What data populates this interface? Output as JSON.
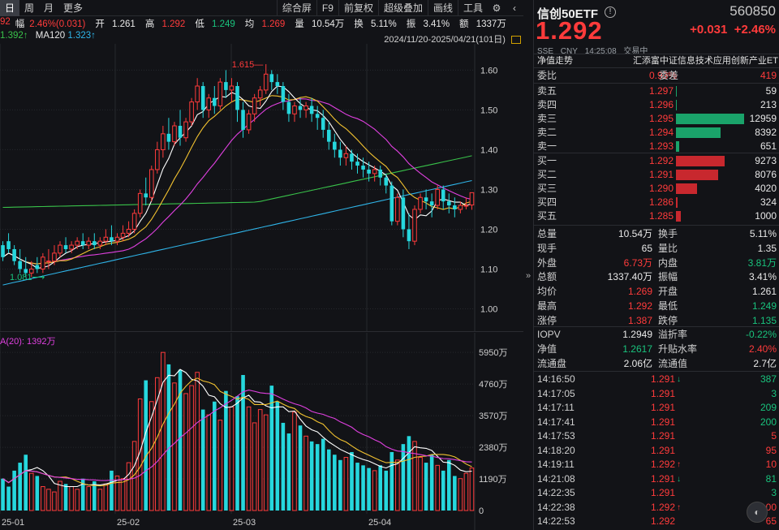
{
  "toolbar": {
    "period_day": "日",
    "period_week": "周",
    "period_month": "月",
    "more": "更多",
    "composite": "综合屏",
    "f9": "F9",
    "forward_adj": "前复权",
    "overlay": "超级叠加",
    "draw": "画线",
    "tools": "工具"
  },
  "info_line": {
    "prefix": "92",
    "change_label": "幅",
    "change_value": "2.46%(0.031)",
    "open_label": "开",
    "open_value": "1.261",
    "high_label": "高",
    "high_value": "1.292",
    "low_label": "低",
    "low_value": "1.249",
    "avg_label": "均",
    "avg_value": "1.269",
    "vol_label": "量",
    "vol_value": "10.54万",
    "turnover_label": "换",
    "turnover_value": "5.11%",
    "amp_label": "振",
    "amp_value": "3.41%",
    "amount_label": "额",
    "amount_value": "1337万"
  },
  "ma_line": {
    "ma_short": "1.392↑",
    "ma120_label": "MA120",
    "ma120_value": "1.323↑"
  },
  "range_text": "2024/11/20-2025/04/21(101日)",
  "kline": {
    "price_ticks": [
      "1.60",
      "1.50",
      "1.40",
      "1.30",
      "1.20",
      "1.10",
      "1.00"
    ],
    "high_label": "1.615",
    "low_label": "1.081"
  },
  "volume": {
    "label": "A(20): 1392万",
    "ticks": [
      "5950万",
      "4760万",
      "3570万",
      "2380万",
      "1190万",
      "0"
    ]
  },
  "date_ticks": [
    "25-01",
    "25-02",
    "25-03",
    "25-04"
  ],
  "colors": {
    "up": "#ff3b3b",
    "down": "#26d7dd",
    "ma5": "#ffffff",
    "ma10": "#f2c230",
    "ma20": "#e040e0",
    "ma60": "#39c24a",
    "ma120": "#2fb4e8"
  },
  "quote": {
    "name": "信创50ETF",
    "code": "560850",
    "price": "1.292",
    "change": "+0.031",
    "change_pct": "+2.46%",
    "exchange": "SSE",
    "currency": "CNY",
    "time": "14:25:08",
    "status": "交易中",
    "nav_tab": "净值走势",
    "index_name": "汇添富中证信息技术应用创新产业ET"
  },
  "order_ratio": {
    "label1": "委比",
    "value1": "0.93%",
    "label2": "委差",
    "value2": "419"
  },
  "asks": [
    {
      "label": "卖五",
      "price": "1.297",
      "volume": "59",
      "bar_pct": 0.5
    },
    {
      "label": "卖四",
      "price": "1.296",
      "volume": "213",
      "bar_pct": 1.6
    },
    {
      "label": "卖三",
      "price": "1.295",
      "volume": "12959",
      "bar_pct": 100
    },
    {
      "label": "卖二",
      "price": "1.294",
      "volume": "8392",
      "bar_pct": 65
    },
    {
      "label": "卖一",
      "price": "1.293",
      "volume": "651",
      "bar_pct": 5
    }
  ],
  "bids": [
    {
      "label": "买一",
      "price": "1.292",
      "volume": "9273",
      "bar_pct": 72
    },
    {
      "label": "买二",
      "price": "1.291",
      "volume": "8076",
      "bar_pct": 62
    },
    {
      "label": "买三",
      "price": "1.290",
      "volume": "4020",
      "bar_pct": 31
    },
    {
      "label": "买四",
      "price": "1.286",
      "volume": "324",
      "bar_pct": 2.5
    },
    {
      "label": "买五",
      "price": "1.285",
      "volume": "1000",
      "bar_pct": 7.7
    }
  ],
  "stats": [
    {
      "k1": "总量",
      "v1": "10.54万",
      "c1": "white",
      "k2": "换手",
      "v2": "5.11%",
      "c2": "white"
    },
    {
      "k1": "现手",
      "v1": "65",
      "c1": "white",
      "k2": "量比",
      "v2": "1.35",
      "c2": "white"
    },
    {
      "k1": "外盘",
      "v1": "6.73万",
      "c1": "red",
      "k2": "内盘",
      "v2": "3.81万",
      "c2": "green"
    },
    {
      "k1": "总额",
      "v1": "1337.40万",
      "c1": "white",
      "k2": "振幅",
      "v2": "3.41%",
      "c2": "white"
    },
    {
      "k1": "均价",
      "v1": "1.269",
      "c1": "red",
      "k2": "开盘",
      "v2": "1.261",
      "c2": "white"
    },
    {
      "k1": "最高",
      "v1": "1.292",
      "c1": "red",
      "k2": "最低",
      "v2": "1.249",
      "c2": "green"
    },
    {
      "k1": "涨停",
      "v1": "1.387",
      "c1": "red",
      "k2": "跌停",
      "v2": "1.135",
      "c2": "green"
    }
  ],
  "iopv_stats": [
    {
      "k1": "IOPV",
      "v1": "1.2949",
      "c1": "white",
      "k2": "溢折率",
      "v2": "-0.22%",
      "c2": "green"
    },
    {
      "k1": "净值",
      "v1": "1.2617",
      "c1": "green",
      "k2": "升贴水率",
      "v2": "2.40%",
      "c2": "red"
    },
    {
      "k1": "流通盘",
      "v1": "2.06亿",
      "c1": "white",
      "k2": "流通值",
      "v2": "2.7亿",
      "c2": "white"
    }
  ],
  "ticks": [
    {
      "time": "14:16:50",
      "price": "1.291",
      "arrow": "↓",
      "dir": "down",
      "volume": "387"
    },
    {
      "time": "14:17:05",
      "price": "1.291",
      "arrow": "",
      "dir": "down",
      "volume": "3"
    },
    {
      "time": "14:17:11",
      "price": "1.291",
      "arrow": "",
      "dir": "down",
      "volume": "209"
    },
    {
      "time": "14:17:41",
      "price": "1.291",
      "arrow": "",
      "dir": "down",
      "volume": "200"
    },
    {
      "time": "14:17:53",
      "price": "1.291",
      "arrow": "",
      "dir": "up",
      "volume": "5"
    },
    {
      "time": "14:18:20",
      "price": "1.291",
      "arrow": "",
      "dir": "up",
      "volume": "95"
    },
    {
      "time": "14:19:11",
      "price": "1.292",
      "arrow": "↑",
      "dir": "up",
      "volume": "10"
    },
    {
      "time": "14:21:08",
      "price": "1.291",
      "arrow": "↓",
      "dir": "down",
      "volume": "81"
    },
    {
      "time": "14:22:35",
      "price": "1.291",
      "arrow": "",
      "dir": "down",
      "volume": "3"
    },
    {
      "time": "14:22:38",
      "price": "1.292",
      "arrow": "↑",
      "dir": "up",
      "volume": "100"
    },
    {
      "time": "14:22:53",
      "price": "1.292",
      "arrow": "",
      "dir": "up",
      "volume": "65"
    }
  ],
  "chart_data": {
    "type": "candlestick",
    "title": "",
    "y_range": [
      0.95,
      1.66
    ],
    "candles": [
      [
        1.16,
        1.17,
        1.13,
        1.12
      ],
      [
        1.17,
        1.19,
        1.15,
        1.14
      ],
      [
        1.15,
        1.16,
        1.12,
        1.11
      ],
      [
        1.12,
        1.15,
        1.1,
        1.09
      ],
      [
        1.1,
        1.13,
        1.09,
        1.08
      ],
      [
        1.09,
        1.12,
        1.1,
        1.08
      ],
      [
        1.11,
        1.13,
        1.1,
        1.09
      ],
      [
        1.1,
        1.14,
        1.13,
        1.09
      ],
      [
        1.12,
        1.15,
        1.12,
        1.1
      ],
      [
        1.12,
        1.16,
        1.14,
        1.11
      ],
      [
        1.14,
        1.17,
        1.16,
        1.13
      ],
      [
        1.16,
        1.18,
        1.15,
        1.14
      ],
      [
        1.15,
        1.17,
        1.16,
        1.14
      ],
      [
        1.16,
        1.18,
        1.17,
        1.15
      ],
      [
        1.17,
        1.19,
        1.16,
        1.15
      ],
      [
        1.16,
        1.18,
        1.17,
        1.15
      ],
      [
        1.17,
        1.19,
        1.16,
        1.15
      ],
      [
        1.16,
        1.18,
        1.17,
        1.15
      ],
      [
        1.17,
        1.2,
        1.18,
        1.16
      ],
      [
        1.18,
        1.21,
        1.17,
        1.16
      ],
      [
        1.17,
        1.19,
        1.18,
        1.16
      ],
      [
        1.18,
        1.21,
        1.19,
        1.17
      ],
      [
        1.19,
        1.22,
        1.2,
        1.18
      ],
      [
        1.2,
        1.25,
        1.24,
        1.19
      ],
      [
        1.24,
        1.3,
        1.29,
        1.23
      ],
      [
        1.29,
        1.33,
        1.28,
        1.26
      ],
      [
        1.28,
        1.36,
        1.35,
        1.27
      ],
      [
        1.35,
        1.42,
        1.4,
        1.34
      ],
      [
        1.4,
        1.46,
        1.44,
        1.38
      ],
      [
        1.44,
        1.48,
        1.42,
        1.4
      ],
      [
        1.42,
        1.47,
        1.46,
        1.41
      ],
      [
        1.46,
        1.5,
        1.43,
        1.41
      ],
      [
        1.43,
        1.48,
        1.47,
        1.42
      ],
      [
        1.47,
        1.53,
        1.52,
        1.46
      ],
      [
        1.52,
        1.58,
        1.56,
        1.5
      ],
      [
        1.56,
        1.57,
        1.5,
        1.48
      ],
      [
        1.5,
        1.54,
        1.53,
        1.48
      ],
      [
        1.53,
        1.56,
        1.51,
        1.49
      ],
      [
        1.51,
        1.58,
        1.57,
        1.5
      ],
      [
        1.57,
        1.6,
        1.55,
        1.53
      ],
      [
        1.55,
        1.58,
        1.56,
        1.52
      ],
      [
        1.56,
        1.57,
        1.5,
        1.47
      ],
      [
        1.5,
        1.52,
        1.45,
        1.43
      ],
      [
        1.45,
        1.5,
        1.49,
        1.44
      ],
      [
        1.49,
        1.54,
        1.53,
        1.47
      ],
      [
        1.53,
        1.56,
        1.55,
        1.51
      ],
      [
        1.55,
        1.615,
        1.59,
        1.54
      ],
      [
        1.59,
        1.6,
        1.57,
        1.55
      ],
      [
        1.57,
        1.59,
        1.56,
        1.54
      ],
      [
        1.56,
        1.57,
        1.52,
        1.5
      ],
      [
        1.52,
        1.54,
        1.49,
        1.47
      ],
      [
        1.49,
        1.52,
        1.51,
        1.47
      ],
      [
        1.51,
        1.53,
        1.5,
        1.48
      ],
      [
        1.5,
        1.52,
        1.51,
        1.48
      ],
      [
        1.51,
        1.53,
        1.49,
        1.47
      ],
      [
        1.49,
        1.51,
        1.48,
        1.45
      ],
      [
        1.48,
        1.5,
        1.45,
        1.43
      ],
      [
        1.45,
        1.47,
        1.42,
        1.4
      ],
      [
        1.42,
        1.44,
        1.4,
        1.38
      ],
      [
        1.4,
        1.42,
        1.38,
        1.36
      ],
      [
        1.38,
        1.41,
        1.39,
        1.36
      ],
      [
        1.39,
        1.4,
        1.37,
        1.35
      ],
      [
        1.37,
        1.39,
        1.36,
        1.34
      ],
      [
        1.36,
        1.38,
        1.35,
        1.33
      ],
      [
        1.35,
        1.37,
        1.34,
        1.32
      ],
      [
        1.34,
        1.36,
        1.35,
        1.32
      ],
      [
        1.35,
        1.36,
        1.33,
        1.31
      ],
      [
        1.33,
        1.34,
        1.31,
        1.29
      ],
      [
        1.31,
        1.32,
        1.22,
        1.21
      ],
      [
        1.22,
        1.29,
        1.28,
        1.21
      ],
      [
        1.28,
        1.3,
        1.2,
        1.18
      ],
      [
        1.2,
        1.24,
        1.17,
        1.15
      ],
      [
        1.17,
        1.26,
        1.25,
        1.16
      ],
      [
        1.25,
        1.29,
        1.28,
        1.24
      ],
      [
        1.28,
        1.3,
        1.27,
        1.25
      ],
      [
        1.27,
        1.29,
        1.26,
        1.23
      ],
      [
        1.26,
        1.31,
        1.3,
        1.25
      ],
      [
        1.3,
        1.31,
        1.27,
        1.25
      ],
      [
        1.27,
        1.29,
        1.26,
        1.24
      ],
      [
        1.26,
        1.28,
        1.25,
        1.23
      ],
      [
        1.25,
        1.27,
        1.26,
        1.24
      ],
      [
        1.26,
        1.28,
        1.26,
        1.25
      ],
      [
        1.261,
        1.292,
        1.292,
        1.249
      ]
    ],
    "volumes": [
      1200,
      900,
      1500,
      1800,
      2100,
      1400,
      1300,
      900,
      800,
      700,
      1100,
      1000,
      900,
      800,
      1200,
      900,
      1100,
      800,
      1000,
      1500,
      1300,
      1200,
      1800,
      2600,
      4200,
      4900,
      4100,
      5000,
      5950,
      5500,
      4800,
      5300,
      4400,
      4700,
      5200,
      3800,
      3600,
      4100,
      3400,
      4500,
      3900,
      4300,
      5100,
      3900,
      3300,
      3800,
      3600,
      4700,
      4100,
      3300,
      2900,
      3700,
      3200,
      2800,
      2600,
      2500,
      2700,
      2300,
      2100,
      1900,
      2000,
      2200,
      1800,
      1700,
      1600,
      1500,
      1700,
      1500,
      2200,
      1900,
      2500,
      2800,
      2600,
      2000,
      1800,
      2100,
      1700,
      1500,
      1900,
      1300,
      1200,
      1400,
      1600
    ],
    "ylabel": ""
  }
}
